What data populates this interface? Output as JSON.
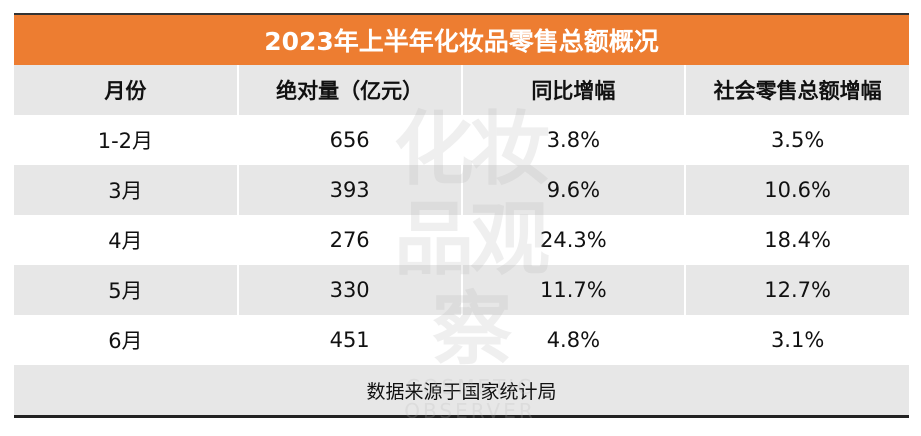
{
  "table": {
    "title": "2023年上半年化妆品零售总额概况",
    "headers": [
      "月份",
      "绝对量（亿元）",
      "同比增幅",
      "社会零售总额增幅"
    ],
    "rows": [
      [
        "1-2月",
        "656",
        "3.8%",
        "3.5%"
      ],
      [
        "3月",
        "393",
        "9.6%",
        "10.6%"
      ],
      [
        "4月",
        "276",
        "24.3%",
        "18.4%"
      ],
      [
        "5月",
        "330",
        "11.7%",
        "12.7%"
      ],
      [
        "6月",
        "451",
        "4.8%",
        "3.1%"
      ]
    ],
    "footer": "数据来源于国家统计局"
  },
  "watermark": {
    "text": "化妆品观察",
    "subtext": "COSMETIC OBSERVER"
  }
}
